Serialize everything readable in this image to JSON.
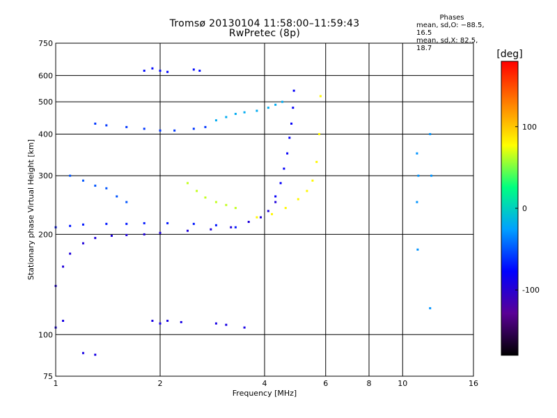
{
  "header": {
    "title_line1": "Tromsø 20130104 11:58:00–11:59:43",
    "title_line2": "RwPretec (8p)"
  },
  "phases": {
    "title": "Phases",
    "line_o": "mean, sd,O: −88.5, 16.5",
    "line_x": "mean, sd,X:  82.5, 18.7"
  },
  "chart_data": {
    "type": "scatter",
    "title": "Tromsø 20130104 11:58:00–11:59:43",
    "subtitle": "RwPretec (8p)",
    "xlabel": "Frequency [MHz]",
    "ylabel": "Stationary phase Virtual Height [km]",
    "xscale": "log",
    "yscale": "log",
    "xlim": [
      1,
      16
    ],
    "ylim": [
      75,
      750
    ],
    "xticks": [
      1,
      2,
      4,
      6,
      8,
      10,
      16
    ],
    "yticks": [
      75,
      100,
      200,
      300,
      400,
      500,
      600,
      750
    ],
    "grid": true,
    "colorbar": {
      "label": "[deg]",
      "range": [
        -180,
        180
      ],
      "ticks": [
        100,
        0,
        -100
      ],
      "colors": [
        "#000000",
        "#5a0096",
        "#0000ff",
        "#00a0ff",
        "#00ff80",
        "#ffff00",
        "#ff8000",
        "#ff0000"
      ]
    },
    "series": [
      {
        "phase": -95,
        "x": [
          1.0,
          1.05,
          1.1,
          1.2,
          1.3,
          1.45,
          1.6,
          1.8,
          2.0,
          2.4,
          2.8,
          3.2,
          3.6,
          3.9,
          4.1,
          4.3
        ],
        "y": [
          140,
          160,
          175,
          188,
          195,
          198,
          199,
          200,
          202,
          205,
          207,
          210,
          218,
          225,
          235,
          250
        ]
      },
      {
        "phase": -70,
        "x": [
          1.0,
          1.1,
          1.2,
          1.4,
          1.6,
          1.8,
          2.1,
          2.5,
          2.9,
          3.3
        ],
        "y": [
          210,
          212,
          214,
          215,
          215,
          216,
          216,
          215,
          213,
          210
        ]
      },
      {
        "phase": -80,
        "x": [
          4.3,
          4.45,
          4.55,
          4.65,
          4.72,
          4.78,
          4.83,
          4.86
        ],
        "y": [
          260,
          285,
          315,
          350,
          390,
          430,
          480,
          540
        ]
      },
      {
        "phase": 80,
        "x": [
          3.8,
          4.2,
          4.6,
          5.0,
          5.3,
          5.5,
          5.65,
          5.75,
          5.8
        ],
        "y": [
          225,
          230,
          240,
          255,
          270,
          290,
          330,
          400,
          520
        ]
      },
      {
        "phase": 65,
        "x": [
          2.4,
          2.55,
          2.7,
          2.9,
          3.1,
          3.3
        ],
        "y": [
          285,
          270,
          258,
          250,
          245,
          240
        ]
      },
      {
        "phase": -50,
        "x": [
          1.1,
          1.2,
          1.3,
          1.4,
          1.5,
          1.6
        ],
        "y": [
          300,
          290,
          280,
          275,
          260,
          250
        ]
      },
      {
        "phase": -60,
        "x": [
          1.3,
          1.4,
          1.6,
          1.8,
          2.0,
          2.2,
          2.5,
          2.7
        ],
        "y": [
          430,
          425,
          420,
          415,
          410,
          410,
          415,
          420
        ]
      },
      {
        "phase": -20,
        "x": [
          2.9,
          3.1,
          3.3,
          3.5,
          3.8,
          4.1,
          4.3,
          4.5
        ],
        "y": [
          440,
          450,
          460,
          465,
          470,
          480,
          490,
          500
        ]
      },
      {
        "phase": -75,
        "x": [
          1.8,
          1.9,
          2.0,
          2.1,
          2.5,
          2.6
        ],
        "y": [
          620,
          630,
          620,
          615,
          625,
          620
        ]
      },
      {
        "phase": -90,
        "x": [
          1.0,
          1.05,
          1.2,
          1.3,
          1.9,
          2.0,
          2.1,
          2.3,
          2.9,
          3.1,
          3.5
        ],
        "y": [
          105,
          110,
          88,
          87,
          110,
          108,
          110,
          109,
          108,
          107,
          105
        ]
      },
      {
        "phase": -30,
        "x": [
          11.0,
          11.1,
          11.0,
          11.05,
          12.0,
          12.1,
          12.0
        ],
        "y": [
          350,
          300,
          250,
          180,
          400,
          300,
          120
        ]
      }
    ]
  }
}
